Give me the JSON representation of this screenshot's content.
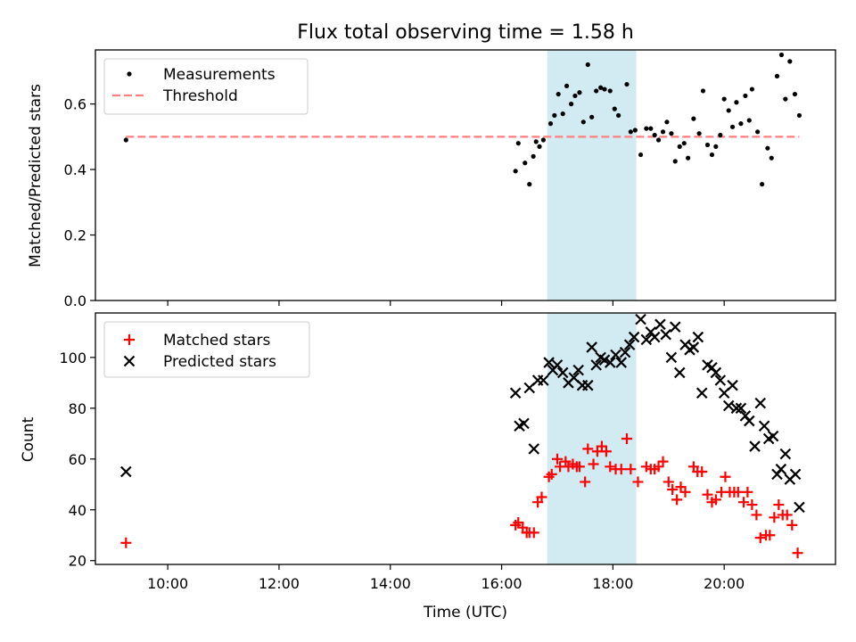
{
  "chart_data": {
    "title": "Flux total observing time = 1.58 h",
    "x_axis": {
      "label": "Time (UTC)",
      "unit": "hours UTC",
      "range": [
        8.7,
        22.0
      ],
      "ticks": [
        10,
        12,
        14,
        16,
        18,
        20
      ],
      "tick_labels": [
        "10:00",
        "12:00",
        "14:00",
        "16:00",
        "18:00",
        "20:00"
      ]
    },
    "highlight_span": {
      "start": 16.82,
      "end": 18.42,
      "color": "#add8e6"
    },
    "panels": [
      {
        "id": "ratio",
        "type": "scatter",
        "ylabel": "Matched/Predicted stars",
        "ylim": [
          0.0,
          0.765
        ],
        "yticks": [
          0.0,
          0.2,
          0.4,
          0.6
        ],
        "ytick_labels": [
          "0.0",
          "0.2",
          "0.4",
          "0.6"
        ],
        "threshold": {
          "label": "Threshold",
          "value": 0.5,
          "x_range": [
            9.25,
            21.35
          ],
          "color": "#ff7f7f"
        },
        "legend": [
          {
            "label": "Measurements",
            "marker": "dot",
            "color": "#000000"
          },
          {
            "label": "Threshold",
            "marker": "dashed-line",
            "color": "#ff7f7f"
          }
        ],
        "series": [
          {
            "name": "Measurements",
            "color": "#000000",
            "points": [
              [
                9.25,
                0.49
              ],
              [
                16.25,
                0.395
              ],
              [
                16.3,
                0.48
              ],
              [
                16.42,
                0.42
              ],
              [
                16.5,
                0.355
              ],
              [
                16.57,
                0.44
              ],
              [
                16.62,
                0.485
              ],
              [
                16.68,
                0.47
              ],
              [
                16.75,
                0.49
              ],
              [
                16.88,
                0.54
              ],
              [
                16.95,
                0.565
              ],
              [
                17.02,
                0.63
              ],
              [
                17.1,
                0.57
              ],
              [
                17.17,
                0.655
              ],
              [
                17.25,
                0.6
              ],
              [
                17.32,
                0.625
              ],
              [
                17.4,
                0.635
              ],
              [
                17.47,
                0.545
              ],
              [
                17.55,
                0.72
              ],
              [
                17.62,
                0.56
              ],
              [
                17.7,
                0.64
              ],
              [
                17.78,
                0.65
              ],
              [
                17.85,
                0.645
              ],
              [
                17.95,
                0.64
              ],
              [
                18.03,
                0.585
              ],
              [
                18.1,
                0.565
              ],
              [
                18.25,
                0.66
              ],
              [
                18.32,
                0.515
              ],
              [
                18.4,
                0.52
              ],
              [
                18.5,
                0.445
              ],
              [
                18.6,
                0.525
              ],
              [
                18.68,
                0.525
              ],
              [
                18.75,
                0.505
              ],
              [
                18.82,
                0.49
              ],
              [
                18.9,
                0.515
              ],
              [
                18.97,
                0.545
              ],
              [
                19.05,
                0.51
              ],
              [
                19.12,
                0.425
              ],
              [
                19.2,
                0.47
              ],
              [
                19.28,
                0.48
              ],
              [
                19.35,
                0.435
              ],
              [
                19.45,
                0.555
              ],
              [
                19.55,
                0.51
              ],
              [
                19.62,
                0.64
              ],
              [
                19.7,
                0.475
              ],
              [
                19.78,
                0.445
              ],
              [
                19.85,
                0.47
              ],
              [
                19.93,
                0.505
              ],
              [
                20.0,
                0.615
              ],
              [
                20.08,
                0.58
              ],
              [
                20.15,
                0.53
              ],
              [
                20.22,
                0.605
              ],
              [
                20.3,
                0.54
              ],
              [
                20.38,
                0.625
              ],
              [
                20.45,
                0.55
              ],
              [
                20.5,
                0.645
              ],
              [
                20.6,
                0.515
              ],
              [
                20.68,
                0.355
              ],
              [
                20.78,
                0.465
              ],
              [
                20.85,
                0.435
              ],
              [
                20.95,
                0.685
              ],
              [
                21.03,
                0.75
              ],
              [
                21.1,
                0.615
              ],
              [
                21.18,
                0.73
              ],
              [
                21.27,
                0.63
              ],
              [
                21.35,
                0.565
              ]
            ]
          }
        ]
      },
      {
        "id": "counts",
        "type": "scatter",
        "ylabel": "Count",
        "ylim": [
          18.5,
          117.5
        ],
        "yticks": [
          20,
          40,
          60,
          80,
          100
        ],
        "ytick_labels": [
          "20",
          "40",
          "60",
          "80",
          "100"
        ],
        "legend": [
          {
            "label": "Matched stars",
            "marker": "plus",
            "color": "#ff0000"
          },
          {
            "label": "Predicted stars",
            "marker": "x",
            "color": "#000000"
          }
        ],
        "series": [
          {
            "name": "Matched stars",
            "marker": "plus",
            "color": "#ff0000",
            "points": [
              [
                9.25,
                27
              ],
              [
                16.25,
                34
              ],
              [
                16.3,
                35
              ],
              [
                16.38,
                33
              ],
              [
                16.45,
                31
              ],
              [
                16.5,
                31
              ],
              [
                16.58,
                31
              ],
              [
                16.65,
                43
              ],
              [
                16.72,
                45
              ],
              [
                16.85,
                53
              ],
              [
                16.9,
                54
              ],
              [
                17.0,
                60
              ],
              [
                17.05,
                57
              ],
              [
                17.15,
                59
              ],
              [
                17.2,
                57
              ],
              [
                17.28,
                58
              ],
              [
                17.35,
                57
              ],
              [
                17.4,
                57
              ],
              [
                17.5,
                51
              ],
              [
                17.55,
                64
              ],
              [
                17.65,
                58
              ],
              [
                17.72,
                63
              ],
              [
                17.8,
                65
              ],
              [
                17.88,
                63
              ],
              [
                17.95,
                57
              ],
              [
                18.05,
                56
              ],
              [
                18.15,
                56
              ],
              [
                18.25,
                68
              ],
              [
                18.32,
                56
              ],
              [
                18.45,
                51
              ],
              [
                18.6,
                57
              ],
              [
                18.68,
                56
              ],
              [
                18.75,
                56
              ],
              [
                18.82,
                57
              ],
              [
                18.9,
                59
              ],
              [
                19.0,
                51
              ],
              [
                19.07,
                48
              ],
              [
                19.15,
                44
              ],
              [
                19.22,
                49
              ],
              [
                19.3,
                47
              ],
              [
                19.45,
                57
              ],
              [
                19.52,
                55
              ],
              [
                19.6,
                55
              ],
              [
                19.7,
                46
              ],
              [
                19.78,
                43
              ],
              [
                19.85,
                44
              ],
              [
                19.95,
                47
              ],
              [
                20.02,
                53
              ],
              [
                20.1,
                47
              ],
              [
                20.18,
                47
              ],
              [
                20.25,
                47
              ],
              [
                20.35,
                43
              ],
              [
                20.42,
                47
              ],
              [
                20.5,
                42
              ],
              [
                20.58,
                38
              ],
              [
                20.65,
                29
              ],
              [
                20.75,
                30
              ],
              [
                20.82,
                30
              ],
              [
                20.9,
                37
              ],
              [
                20.98,
                42
              ],
              [
                21.05,
                38
              ],
              [
                21.13,
                38
              ],
              [
                21.22,
                34
              ],
              [
                21.32,
                23
              ]
            ]
          },
          {
            "name": "Predicted stars",
            "marker": "x",
            "color": "#000000",
            "points": [
              [
                9.25,
                55
              ],
              [
                16.25,
                86
              ],
              [
                16.32,
                73
              ],
              [
                16.4,
                74
              ],
              [
                16.5,
                88
              ],
              [
                16.58,
                64
              ],
              [
                16.65,
                91
              ],
              [
                16.75,
                91
              ],
              [
                16.85,
                98
              ],
              [
                16.92,
                95
              ],
              [
                17.0,
                97
              ],
              [
                17.1,
                94
              ],
              [
                17.2,
                90
              ],
              [
                17.3,
                92
              ],
              [
                17.38,
                95
              ],
              [
                17.45,
                89
              ],
              [
                17.55,
                89
              ],
              [
                17.62,
                104
              ],
              [
                17.7,
                97
              ],
              [
                17.78,
                100
              ],
              [
                17.85,
                99
              ],
              [
                17.95,
                98
              ],
              [
                18.05,
                101
              ],
              [
                18.15,
                98
              ],
              [
                18.22,
                102
              ],
              [
                18.3,
                105
              ],
              [
                18.38,
                108
              ],
              [
                18.5,
                115
              ],
              [
                18.6,
                107
              ],
              [
                18.68,
                110
              ],
              [
                18.75,
                108
              ],
              [
                18.85,
                113
              ],
              [
                18.95,
                109
              ],
              [
                19.05,
                100
              ],
              [
                19.12,
                112
              ],
              [
                19.2,
                94
              ],
              [
                19.3,
                105
              ],
              [
                19.38,
                103
              ],
              [
                19.45,
                104
              ],
              [
                19.53,
                108
              ],
              [
                19.6,
                86
              ],
              [
                19.7,
                97
              ],
              [
                19.78,
                96
              ],
              [
                19.85,
                94
              ],
              [
                19.93,
                91
              ],
              [
                20.0,
                86
              ],
              [
                20.08,
                81
              ],
              [
                20.15,
                89
              ],
              [
                20.22,
                80
              ],
              [
                20.3,
                80
              ],
              [
                20.38,
                77
              ],
              [
                20.45,
                75
              ],
              [
                20.55,
                65
              ],
              [
                20.65,
                82
              ],
              [
                20.72,
                73
              ],
              [
                20.8,
                68
              ],
              [
                20.88,
                69
              ],
              [
                20.95,
                54
              ],
              [
                21.02,
                56
              ],
              [
                21.1,
                62
              ],
              [
                21.18,
                52
              ],
              [
                21.28,
                54
              ],
              [
                21.35,
                41
              ]
            ]
          }
        ]
      }
    ]
  }
}
